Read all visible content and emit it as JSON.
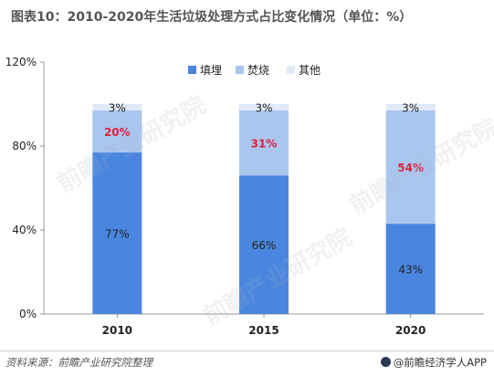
{
  "title": "图表10：2010-2020年生活垃圾处理方式占比变化情况（单位：%）",
  "footer": {
    "source": "资料来源：前瞻产业研究院整理",
    "brand": "@前瞻经济学人APP"
  },
  "watermark": "前瞻产业研究院",
  "colors": {
    "landfill": "#4a86df",
    "incineration": "#a9c6ee",
    "other": "#dfe9f8",
    "highlight": "#e0203c",
    "text": "#222222"
  },
  "chart_data": {
    "type": "bar",
    "stacked": true,
    "categories": [
      "2010",
      "2015",
      "2020"
    ],
    "series": [
      {
        "name": "填埋",
        "values": [
          77,
          66,
          43
        ],
        "labels": [
          "77%",
          "66%",
          "43%"
        ]
      },
      {
        "name": "焚烧",
        "values": [
          20,
          31,
          54
        ],
        "labels": [
          "20%",
          "31%",
          "54%"
        ]
      },
      {
        "name": "其他",
        "values": [
          3,
          3,
          3
        ],
        "labels": [
          "3%",
          "3%",
          "3%"
        ]
      }
    ],
    "ylim": [
      0,
      120
    ],
    "yticks": [
      0,
      40,
      80,
      120
    ],
    "ytick_labels": [
      "0%",
      "40%",
      "80%",
      "120%"
    ],
    "legend": "top-center",
    "grid": false
  }
}
